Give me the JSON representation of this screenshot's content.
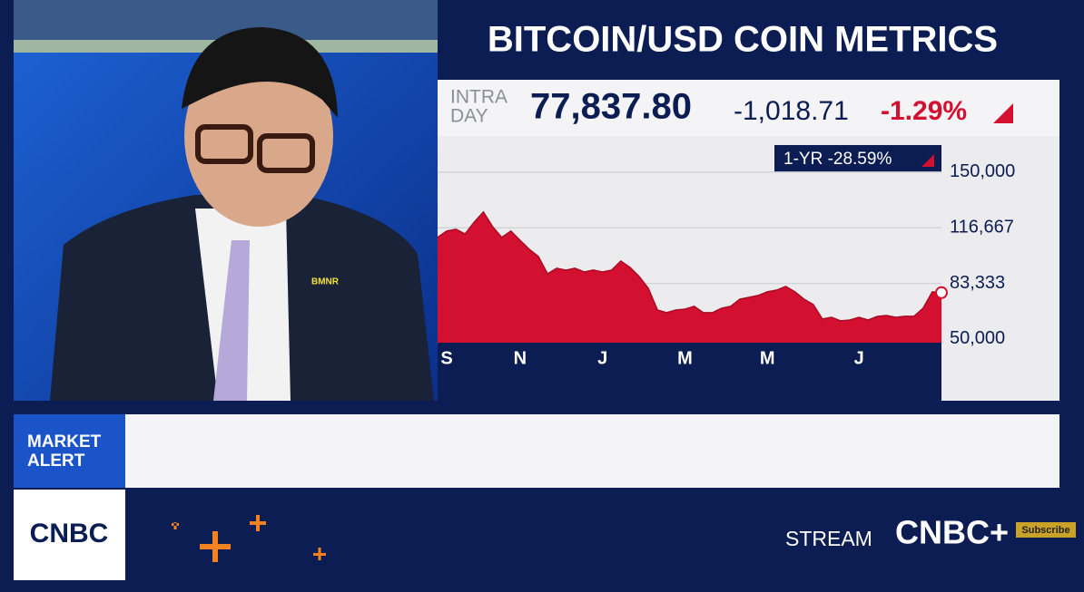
{
  "header": {
    "title": "BITCOIN/USD COIN METRICS"
  },
  "quote": {
    "label": [
      "INTRA",
      "DAY"
    ],
    "price": "77,837.80",
    "change": "-1,018.71",
    "change_pct": "-1.29%"
  },
  "chart_data": {
    "type": "area",
    "annotation": "1-YR -28.59%",
    "color": "#d3102f",
    "categories": [
      null,
      "S",
      null,
      null,
      null,
      null,
      null,
      null,
      null,
      "N",
      null,
      null,
      null,
      null,
      null,
      null,
      null,
      null,
      "J",
      null,
      null,
      null,
      null,
      null,
      null,
      null,
      null,
      "M",
      null,
      null,
      null,
      null,
      null,
      null,
      null,
      null,
      "M",
      null,
      null,
      null,
      null,
      null,
      null,
      null,
      null,
      null,
      "J",
      null,
      null,
      null,
      null,
      null,
      null,
      null,
      null,
      null
    ],
    "values": [
      110900,
      114700,
      115800,
      113000,
      120100,
      126100,
      117400,
      110900,
      114700,
      109200,
      103800,
      99500,
      89100,
      92400,
      91300,
      92400,
      90200,
      91300,
      90200,
      91300,
      96700,
      92900,
      87500,
      80400,
      67400,
      65800,
      67400,
      67900,
      69600,
      65800,
      65800,
      68500,
      69600,
      73900,
      75000,
      76100,
      78300,
      79300,
      81500,
      78300,
      73900,
      70700,
      62000,
      63000,
      60900,
      61400,
      63000,
      61400,
      63600,
      64100,
      63000,
      63600,
      63600,
      68500,
      78300,
      77800
    ],
    "ylim": [
      47800,
      171700
    ],
    "yticks": [
      {
        "value": 50000,
        "label": "50,000"
      },
      {
        "value": 83333.33,
        "label": "83,333"
      },
      {
        "value": 116666.67,
        "label": "116,667"
      },
      {
        "value": 150000,
        "label": "150,000"
      }
    ],
    "grid": true
  },
  "video": {
    "pin": "BMNR"
  },
  "ticker": {
    "alert": [
      "MARKET",
      "ALERT"
    ],
    "logo": "CNBC",
    "stream": "STREAM",
    "stream_logo": "CNBC+",
    "subscribe": "Subscribe"
  }
}
